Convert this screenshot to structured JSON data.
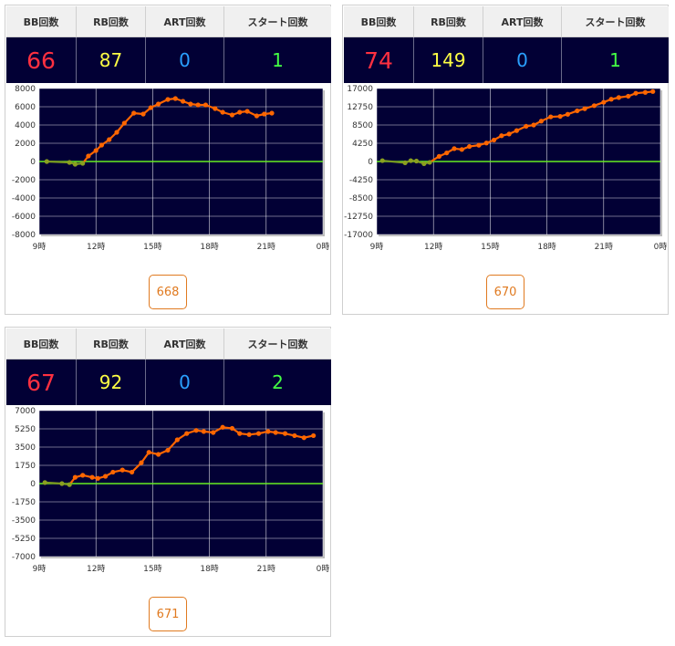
{
  "headers": {
    "bb": "BB回数",
    "rb": "RB回数",
    "art": "ART回数",
    "start": "スタート回数"
  },
  "colors": {
    "bb": "#ff3040",
    "rb": "#ffff44",
    "art": "#2aa0ff",
    "start": "#44ff44",
    "line": "#ff6600",
    "zero": "#66ee22",
    "plot_bg": "#020035"
  },
  "cards": [
    {
      "bb": "66",
      "rb": "87",
      "art": "0",
      "start": "1",
      "number": "668",
      "chart_data": {
        "type": "line",
        "y_ticks": [
          "8000",
          "6000",
          "4000",
          "2000",
          "0",
          "-2000",
          "-4000",
          "-6000",
          "-8000"
        ],
        "ylim": [
          -8000,
          8000
        ],
        "x_ticks": [
          "9時",
          "12時",
          "15時",
          "18時",
          "21時",
          "0時"
        ],
        "xlim": [
          9,
          24
        ],
        "x": [
          9.4,
          10.6,
          10.9,
          11.3,
          11.6,
          12.0,
          12.3,
          12.7,
          13.1,
          13.5,
          14.0,
          14.5,
          14.9,
          15.3,
          15.8,
          16.2,
          16.6,
          17.0,
          17.4,
          17.8,
          18.3,
          18.7,
          19.2,
          19.6,
          20.0,
          20.5,
          20.9,
          21.3
        ],
        "values": [
          0,
          -100,
          -300,
          -200,
          600,
          1200,
          1800,
          2400,
          3200,
          4200,
          5300,
          5200,
          5900,
          6300,
          6800,
          6900,
          6600,
          6300,
          6200,
          6200,
          5800,
          5400,
          5100,
          5400,
          5500,
          5000,
          5200,
          5300
        ]
      }
    },
    {
      "bb": "74",
      "rb": "149",
      "art": "0",
      "start": "1",
      "number": "670",
      "chart_data": {
        "type": "line",
        "y_ticks": [
          "17000",
          "12750",
          "8500",
          "4250",
          "0",
          "-4250",
          "-8500",
          "-12750",
          "-17000"
        ],
        "ylim": [
          -17000,
          17000
        ],
        "x_ticks": [
          "9時",
          "12時",
          "15時",
          "18時",
          "21時",
          "0時"
        ],
        "xlim": [
          9,
          24
        ],
        "x": [
          9.3,
          10.5,
          10.8,
          11.1,
          11.5,
          11.8,
          12.3,
          12.7,
          13.1,
          13.5,
          13.9,
          14.4,
          14.8,
          15.2,
          15.6,
          16.0,
          16.4,
          16.9,
          17.3,
          17.7,
          18.2,
          18.7,
          19.1,
          19.6,
          20.0,
          20.5,
          21.0,
          21.4,
          21.8,
          22.3,
          22.7,
          23.2,
          23.6
        ],
        "values": [
          200,
          -300,
          200,
          100,
          -500,
          -200,
          1200,
          2000,
          3000,
          2800,
          3500,
          3800,
          4300,
          5000,
          6000,
          6400,
          7200,
          8200,
          8500,
          9400,
          10400,
          10500,
          11000,
          11800,
          12300,
          13000,
          13800,
          14500,
          14900,
          15200,
          15900,
          16100,
          16300
        ]
      }
    },
    {
      "bb": "67",
      "rb": "92",
      "art": "0",
      "start": "2",
      "number": "671",
      "chart_data": {
        "type": "line",
        "y_ticks": [
          "7000",
          "5250",
          "3500",
          "1750",
          "0",
          "-1750",
          "-3500",
          "-5250",
          "-7000"
        ],
        "ylim": [
          -7000,
          7000
        ],
        "x_ticks": [
          "9時",
          "12時",
          "15時",
          "18時",
          "21時",
          "0時"
        ],
        "xlim": [
          9,
          24
        ],
        "x": [
          9.3,
          10.2,
          10.6,
          10.9,
          11.3,
          11.8,
          12.1,
          12.5,
          12.9,
          13.4,
          13.9,
          14.4,
          14.8,
          15.3,
          15.8,
          16.3,
          16.8,
          17.3,
          17.7,
          18.2,
          18.7,
          19.2,
          19.6,
          20.1,
          20.6,
          21.1,
          21.5,
          22.0,
          22.5,
          23.0,
          23.5
        ],
        "values": [
          100,
          0,
          -100,
          600,
          800,
          600,
          500,
          700,
          1100,
          1300,
          1100,
          2000,
          3000,
          2800,
          3200,
          4200,
          4800,
          5100,
          5000,
          4900,
          5400,
          5300,
          4800,
          4700,
          4800,
          5000,
          4900,
          4800,
          4600,
          4400,
          4600
        ]
      }
    }
  ]
}
